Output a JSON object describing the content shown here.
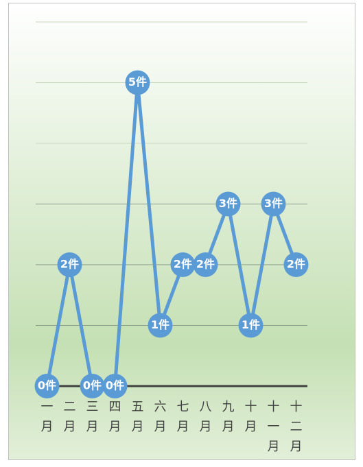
{
  "chart_data": {
    "type": "line",
    "categories": [
      "一月",
      "二月",
      "三月",
      "四月",
      "五月",
      "六月",
      "七月",
      "八月",
      "九月",
      "十月",
      "十一月",
      "十二月"
    ],
    "values": [
      0,
      2,
      0,
      0,
      5,
      1,
      2,
      2,
      3,
      1,
      3,
      2
    ],
    "value_labels": [
      "0件",
      "2件",
      "0件",
      "0件",
      "5件",
      "1件",
      "2件",
      "2件",
      "3件",
      "1件",
      "3件",
      "2件"
    ],
    "color": "#5b9bd5",
    "ylim": [
      0,
      6
    ],
    "yticks": [
      0,
      1,
      2,
      3,
      4,
      5,
      6
    ],
    "grid": true
  }
}
